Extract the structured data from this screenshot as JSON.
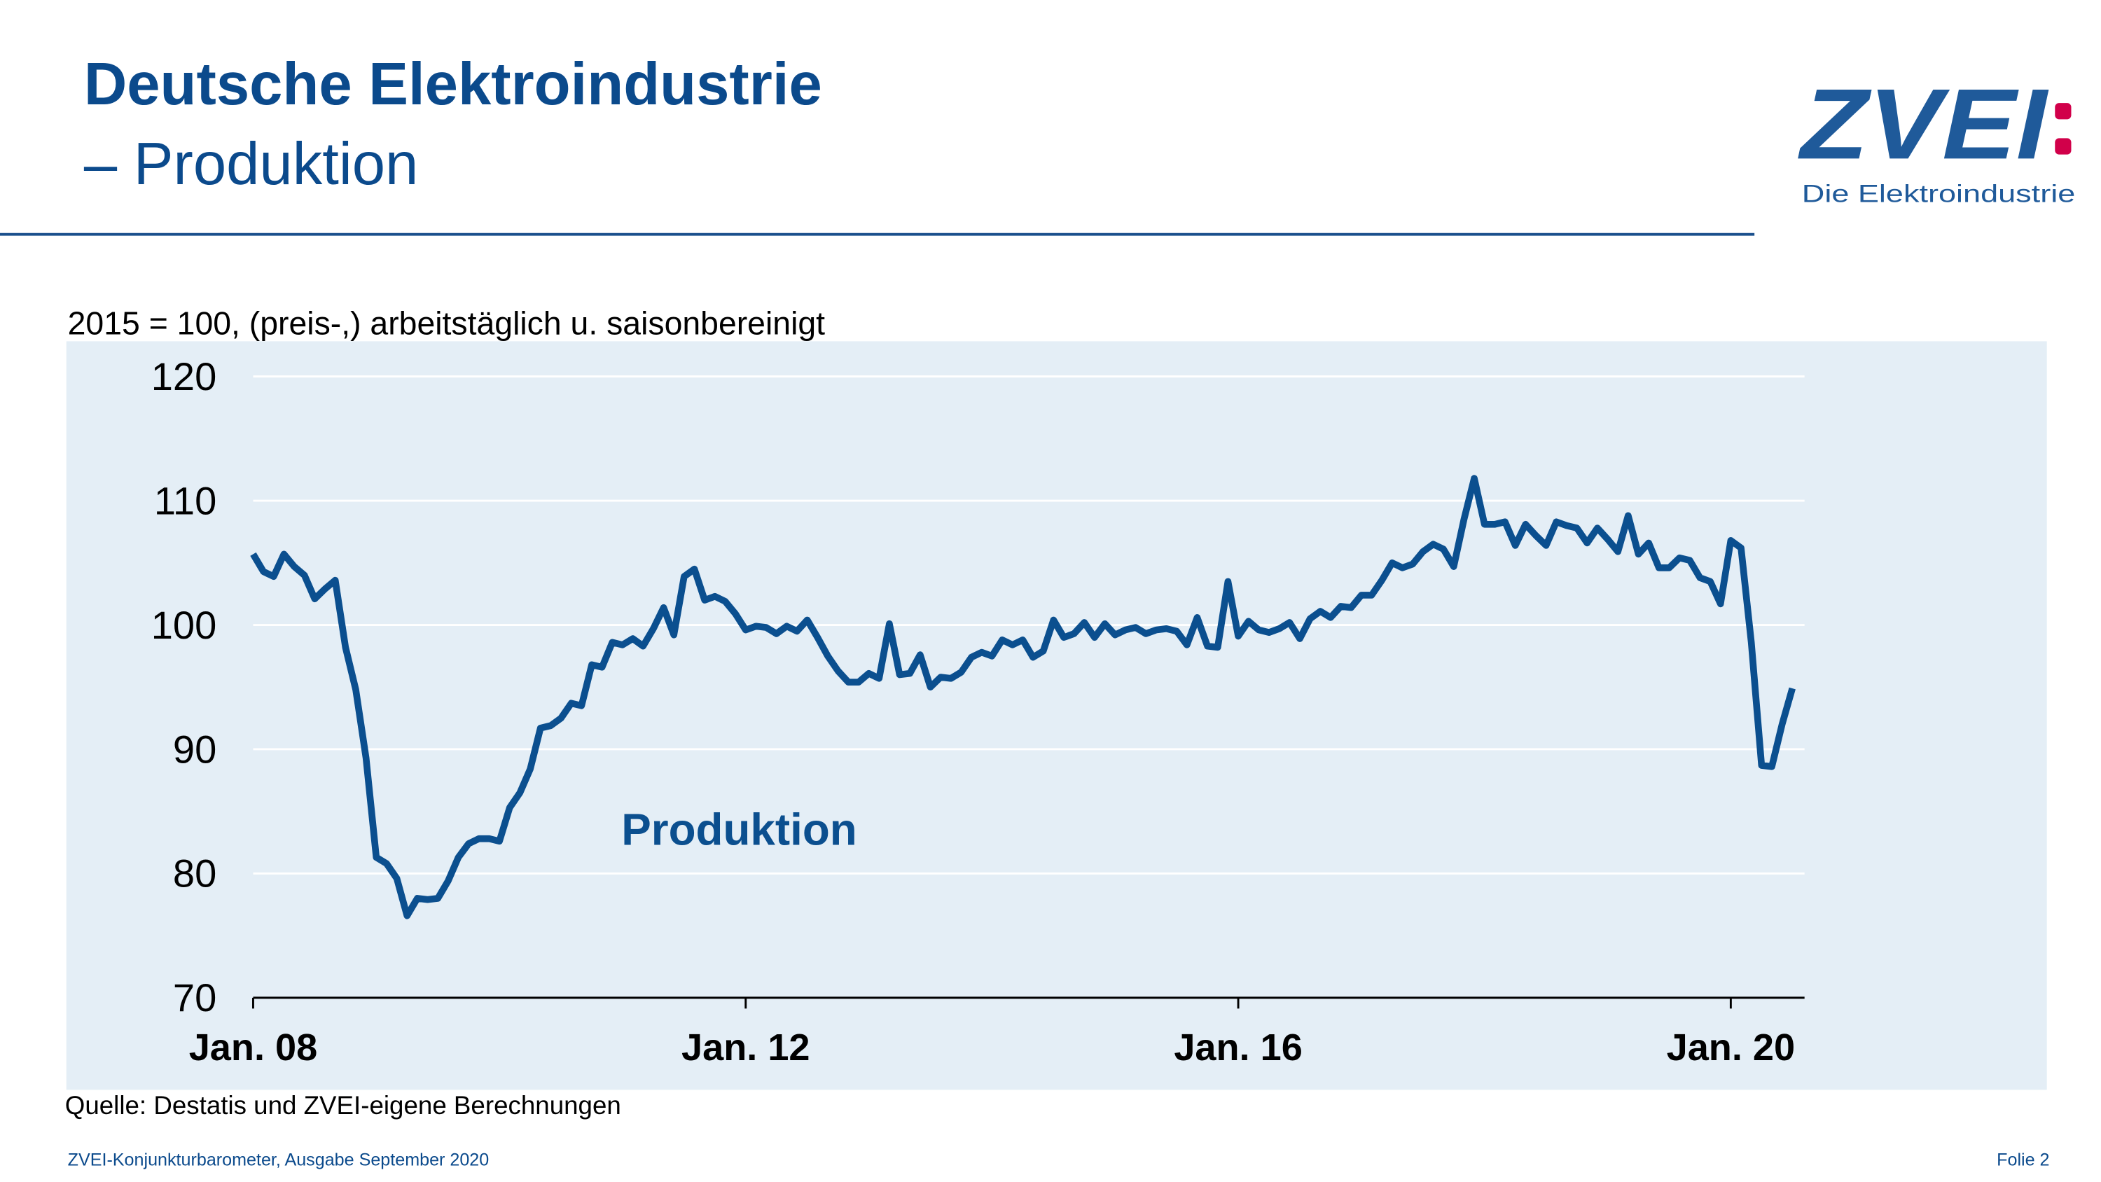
{
  "header": {
    "title": "Deutsche Elektroindustrie",
    "subtitle": "– Produktion"
  },
  "logo": {
    "name": "ZVEI",
    "tagline": "Die Elektroindustrie"
  },
  "chart_data": {
    "type": "line",
    "subtitle": "2015 = 100, (preis-,) arbeitstäglich u. saisonbereinigt",
    "source": "Quelle: Destatis und ZVEI-eigene Berechnungen",
    "categories": [
      "Jan. 08",
      null,
      null,
      null,
      null,
      null,
      null,
      null,
      null,
      null,
      null,
      null,
      null,
      null,
      null,
      null,
      null,
      null,
      null,
      null,
      null,
      null,
      null,
      null,
      null,
      null,
      null,
      null,
      null,
      null,
      null,
      null,
      null,
      null,
      null,
      null,
      null,
      null,
      null,
      null,
      null,
      null,
      null,
      null,
      null,
      null,
      null,
      null,
      "Jan. 12",
      null,
      null,
      null,
      null,
      null,
      null,
      null,
      null,
      null,
      null,
      null,
      null,
      null,
      null,
      null,
      null,
      null,
      null,
      null,
      null,
      null,
      null,
      null,
      null,
      null,
      null,
      null,
      null,
      null,
      null,
      null,
      null,
      null,
      null,
      null,
      null,
      null,
      null,
      null,
      null,
      null,
      null,
      null,
      null,
      null,
      null,
      null,
      "Jan. 16",
      null,
      null,
      null,
      null,
      null,
      null,
      null,
      null,
      null,
      null,
      null,
      null,
      null,
      null,
      null,
      null,
      null,
      null,
      null,
      null,
      null,
      null,
      null,
      null,
      null,
      null,
      null,
      null,
      null,
      null,
      null,
      null,
      null,
      null,
      null,
      null,
      null,
      null,
      null,
      null,
      null,
      null,
      null,
      null,
      null,
      null,
      null,
      "Jan. 20",
      null,
      null,
      null,
      null,
      null,
      null
    ],
    "series": [
      {
        "name": "Produktion",
        "color": "#0b4f8f",
        "values": [
          105.7,
          104.3,
          103.9,
          105.7,
          104.7,
          104.0,
          102.1,
          102.9,
          103.6,
          98.2,
          94.8,
          89.3,
          81.3,
          80.8,
          79.6,
          76.6,
          78.0,
          77.9,
          78.0,
          79.4,
          81.3,
          82.4,
          82.8,
          82.8,
          82.6,
          85.3,
          86.5,
          88.4,
          91.7,
          91.9,
          92.5,
          93.7,
          93.5,
          96.8,
          96.6,
          98.6,
          98.4,
          98.9,
          98.3,
          99.7,
          101.4,
          99.2,
          103.9,
          104.5,
          102.0,
          102.3,
          101.9,
          100.9,
          99.6,
          99.9,
          99.8,
          99.3,
          99.9,
          99.5,
          100.4,
          99.0,
          97.5,
          96.3,
          95.4,
          95.4,
          96.1,
          95.7,
          100.1,
          96.0,
          96.1,
          97.6,
          95.0,
          95.8,
          95.7,
          96.2,
          97.4,
          97.8,
          97.5,
          98.8,
          98.4,
          98.8,
          97.4,
          97.9,
          100.4,
          99.0,
          99.3,
          100.2,
          99.0,
          100.1,
          99.2,
          99.6,
          99.8,
          99.3,
          99.6,
          99.7,
          99.5,
          98.4,
          100.6,
          98.3,
          98.2,
          103.5,
          99.1,
          100.3,
          99.6,
          99.4,
          99.7,
          100.2,
          98.9,
          100.5,
          101.1,
          100.6,
          101.5,
          101.4,
          102.4,
          102.4,
          103.6,
          105.0,
          104.6,
          104.9,
          105.9,
          106.5,
          106.1,
          104.7,
          108.5,
          111.8,
          108.1,
          108.1,
          108.3,
          106.4,
          108.1,
          107.2,
          106.4,
          108.3,
          108.0,
          107.8,
          106.6,
          107.8,
          106.9,
          105.9,
          108.8,
          105.7,
          106.6,
          104.6,
          104.6,
          105.4,
          105.2,
          103.8,
          103.5,
          101.7,
          106.8,
          106.2,
          98.6,
          88.7,
          88.6,
          92.0,
          94.9
        ]
      }
    ],
    "ylim": [
      70,
      120
    ],
    "yticks": [
      70,
      80,
      90,
      100,
      110,
      120
    ],
    "grid": true
  },
  "footer": {
    "left": "ZVEI-Konjunkturbarometer, Ausgabe September 2020",
    "right": "Folie 2"
  }
}
